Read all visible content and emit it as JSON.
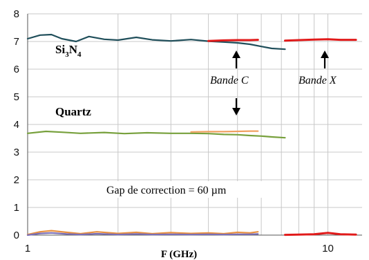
{
  "chart_data": {
    "type": "line",
    "title": "",
    "xlabel": "F (GHz)",
    "ylabel": "",
    "xscale": "log",
    "xlim": [
      1,
      13
    ],
    "ylim": [
      0,
      8
    ],
    "grid": true,
    "legend": "none",
    "y_ticks": [
      "0",
      "1",
      "2",
      "3",
      "4",
      "5",
      "6",
      "7",
      "8"
    ],
    "x_ticks": [
      "1",
      "10"
    ],
    "colors": {
      "si3n4_broadband": "#1f4e5a",
      "quartz_broadband": "#77a03c",
      "band_measure": "#e11a1a",
      "quartz_band_c": "#f0a060",
      "near_zero_a": "#e89040",
      "near_zero_b": "#7a6fb8",
      "grid": "#c8c8c8"
    },
    "series": [
      {
        "key": "si3n4_broadband",
        "x": [
          1.0,
          1.1,
          1.2,
          1.3,
          1.45,
          1.6,
          1.8,
          2.0,
          2.3,
          2.6,
          3.0,
          3.5,
          4.0,
          4.5,
          5.0,
          5.5,
          6.0,
          6.5,
          7.2
        ],
        "y": [
          7.1,
          7.23,
          7.25,
          7.1,
          7.0,
          7.18,
          7.08,
          7.05,
          7.15,
          7.06,
          7.02,
          7.07,
          7.01,
          6.98,
          6.95,
          6.9,
          6.82,
          6.75,
          6.72
        ]
      },
      {
        "key": "quartz_broadband",
        "x": [
          1.0,
          1.15,
          1.3,
          1.5,
          1.8,
          2.1,
          2.5,
          3.0,
          3.5,
          4.0,
          4.5,
          5.0,
          5.5,
          6.0,
          6.5,
          7.2
        ],
        "y": [
          3.68,
          3.75,
          3.72,
          3.68,
          3.71,
          3.67,
          3.7,
          3.68,
          3.68,
          3.67,
          3.64,
          3.63,
          3.6,
          3.58,
          3.55,
          3.52
        ]
      },
      {
        "key": "band_measure",
        "x": [
          4.0,
          4.5,
          5.0,
          5.5,
          5.85
        ],
        "y": [
          7.02,
          7.04,
          7.05,
          7.05,
          7.06
        ]
      },
      {
        "key": "band_measure",
        "x": [
          7.2,
          8.0,
          9.0,
          10.0,
          11.0,
          12.4
        ],
        "y": [
          7.03,
          7.05,
          7.07,
          7.08,
          7.06,
          7.06
        ]
      },
      {
        "key": "quartz_band_c",
        "x": [
          3.5,
          4.0,
          4.5,
          5.0,
          5.5,
          5.85
        ],
        "y": [
          3.73,
          3.74,
          3.74,
          3.75,
          3.76,
          3.76
        ]
      },
      {
        "key": "near_zero_a",
        "x": [
          1.0,
          1.1,
          1.2,
          1.35,
          1.5,
          1.7,
          2.0,
          2.3,
          2.6,
          3.0,
          3.5,
          4.0,
          4.5,
          5.0,
          5.5,
          5.85
        ],
        "y": [
          0.02,
          0.12,
          0.16,
          0.1,
          0.05,
          0.12,
          0.06,
          0.1,
          0.05,
          0.09,
          0.06,
          0.08,
          0.05,
          0.1,
          0.08,
          0.12
        ]
      },
      {
        "key": "near_zero_b",
        "x": [
          1.0,
          1.1,
          1.2,
          1.35,
          1.5,
          1.7,
          2.0,
          2.3,
          2.6,
          3.0,
          3.5,
          4.0,
          4.5,
          5.0,
          5.5,
          5.85
        ],
        "y": [
          0.0,
          0.06,
          0.08,
          0.04,
          0.02,
          0.05,
          0.02,
          0.04,
          0.02,
          0.03,
          0.02,
          0.03,
          0.02,
          0.03,
          0.03,
          0.04
        ]
      },
      {
        "key": "band_measure",
        "x": [
          7.2,
          8.0,
          9.0,
          10.0,
          11.0,
          12.4
        ],
        "y": [
          0.01,
          0.02,
          0.03,
          0.08,
          0.03,
          0.02
        ]
      }
    ],
    "annotations": {
      "si3n4": {
        "base": "Si",
        "sub1": "3",
        "mid": "N",
        "sub2": "4"
      },
      "quartz": "Quartz",
      "bande_c": "Bande C",
      "bande_x": "Bande X",
      "gap": "Gap de correction = 60 µm"
    }
  }
}
